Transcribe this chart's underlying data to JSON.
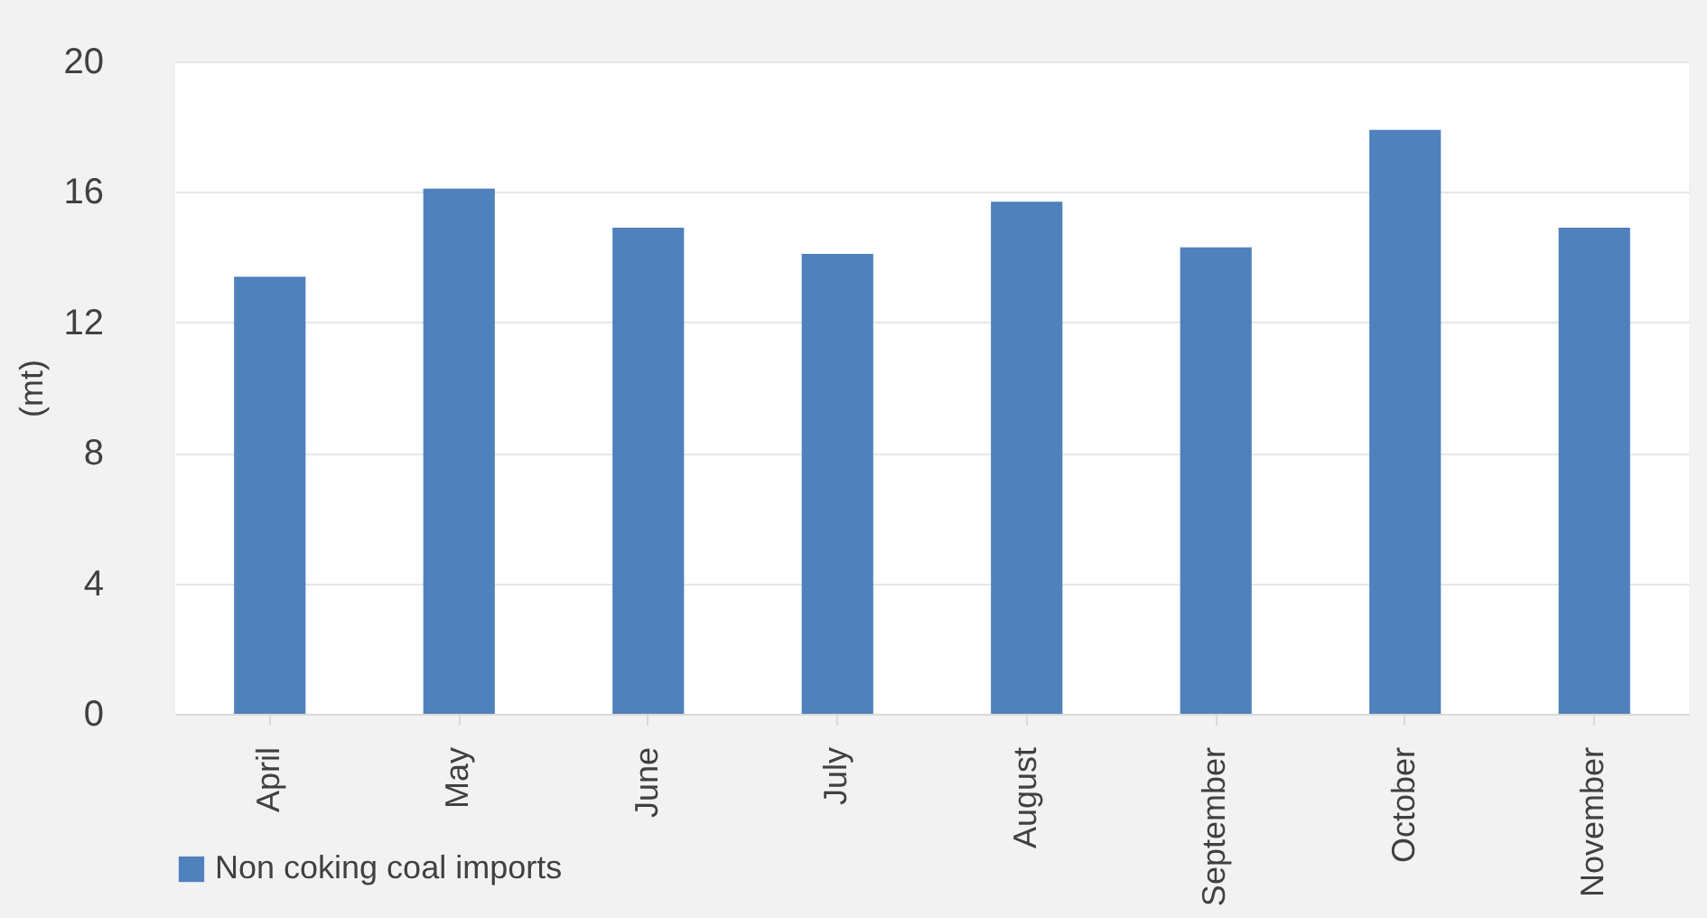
{
  "chart_data": {
    "type": "bar",
    "ylabel": "(mt)",
    "categories": [
      "April",
      "May",
      "June",
      "July",
      "August",
      "September",
      "October",
      "November"
    ],
    "series": [
      {
        "name": "Non coking coal imports",
        "color": "#4f81bd",
        "values": [
          13.4,
          16.1,
          14.9,
          14.1,
          15.7,
          14.3,
          17.9,
          14.9
        ]
      }
    ],
    "ylim": [
      0,
      20
    ],
    "yticks": [
      0,
      4,
      8,
      12,
      16,
      20
    ],
    "grid": "y",
    "legend": "bottom"
  }
}
